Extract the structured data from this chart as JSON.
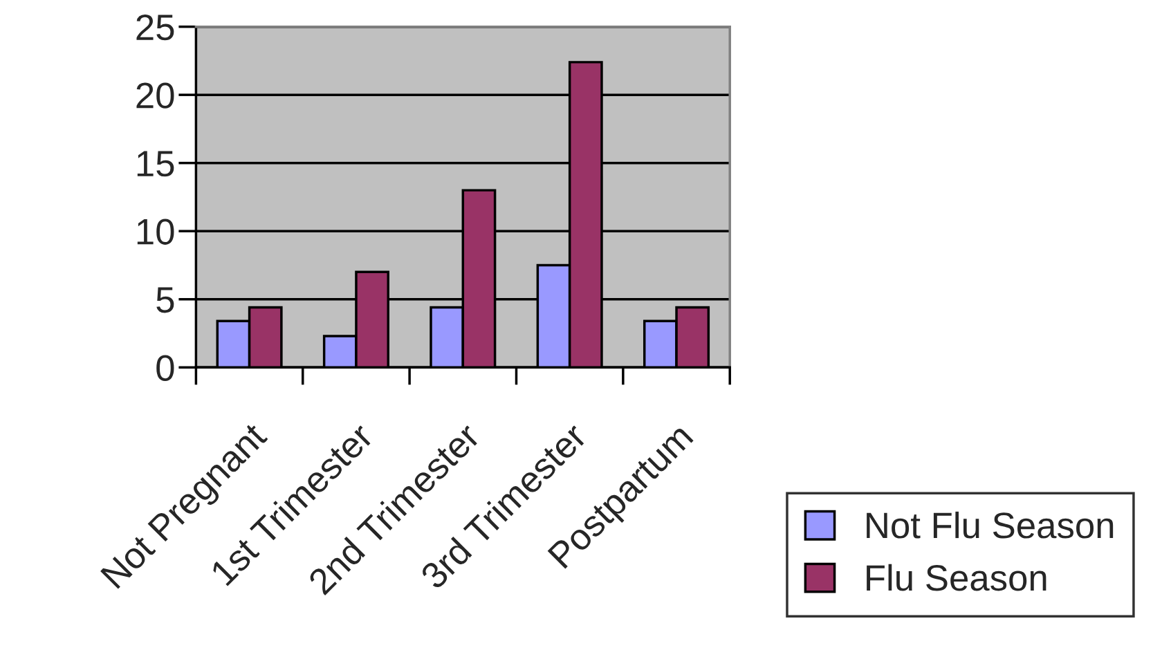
{
  "chart_data": {
    "type": "bar",
    "categories": [
      "Not Pregnant",
      "1st Trimester",
      "2nd Trimester",
      "3rd Trimester",
      "Postpartum"
    ],
    "series": [
      {
        "name": "Not Flu Season",
        "color": "#9999ff",
        "values": [
          3.4,
          2.3,
          4.4,
          7.5,
          3.4
        ]
      },
      {
        "name": "Flu Season",
        "color": "#993366",
        "values": [
          4.4,
          7.0,
          13.0,
          22.4,
          4.4
        ]
      }
    ],
    "ylim": [
      0,
      25
    ],
    "yticks": [
      0,
      5,
      10,
      15,
      20,
      25
    ],
    "grid": "y",
    "legend": "bottom right"
  }
}
